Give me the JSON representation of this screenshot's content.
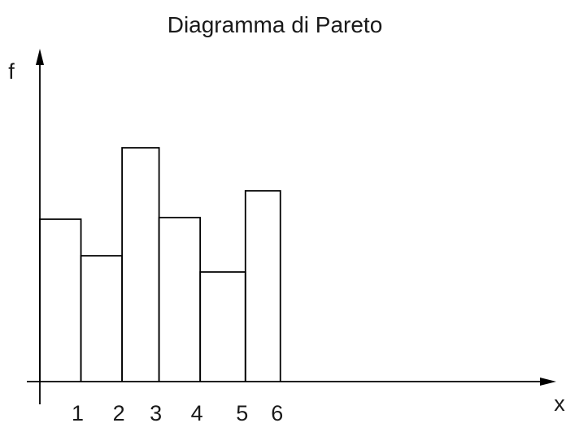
{
  "chart_data": {
    "type": "bar",
    "title": "Diagramma di Pareto",
    "xlabel": "x",
    "ylabel": "f",
    "x_ticks": [
      "1",
      "2",
      "3",
      "4",
      "5",
      "6"
    ],
    "bins": [
      {
        "x0": 0,
        "x1": 1,
        "value": 200
      },
      {
        "x0": 1,
        "x1": 2,
        "value": 155
      },
      {
        "x0": 2,
        "x1": 2.9,
        "value": 288
      },
      {
        "x0": 2.9,
        "x1": 3.9,
        "value": 202
      },
      {
        "x0": 3.9,
        "x1": 5,
        "value": 135
      },
      {
        "x0": 5,
        "x1": 5.85,
        "value": 235
      }
    ],
    "xlim": [
      0,
      12.6
    ],
    "ylim": [
      0,
      410
    ],
    "grid": false,
    "legend": false,
    "colors": {
      "stroke": "#000000",
      "fill": "#ffffff",
      "text": "#1a1a1a"
    }
  }
}
